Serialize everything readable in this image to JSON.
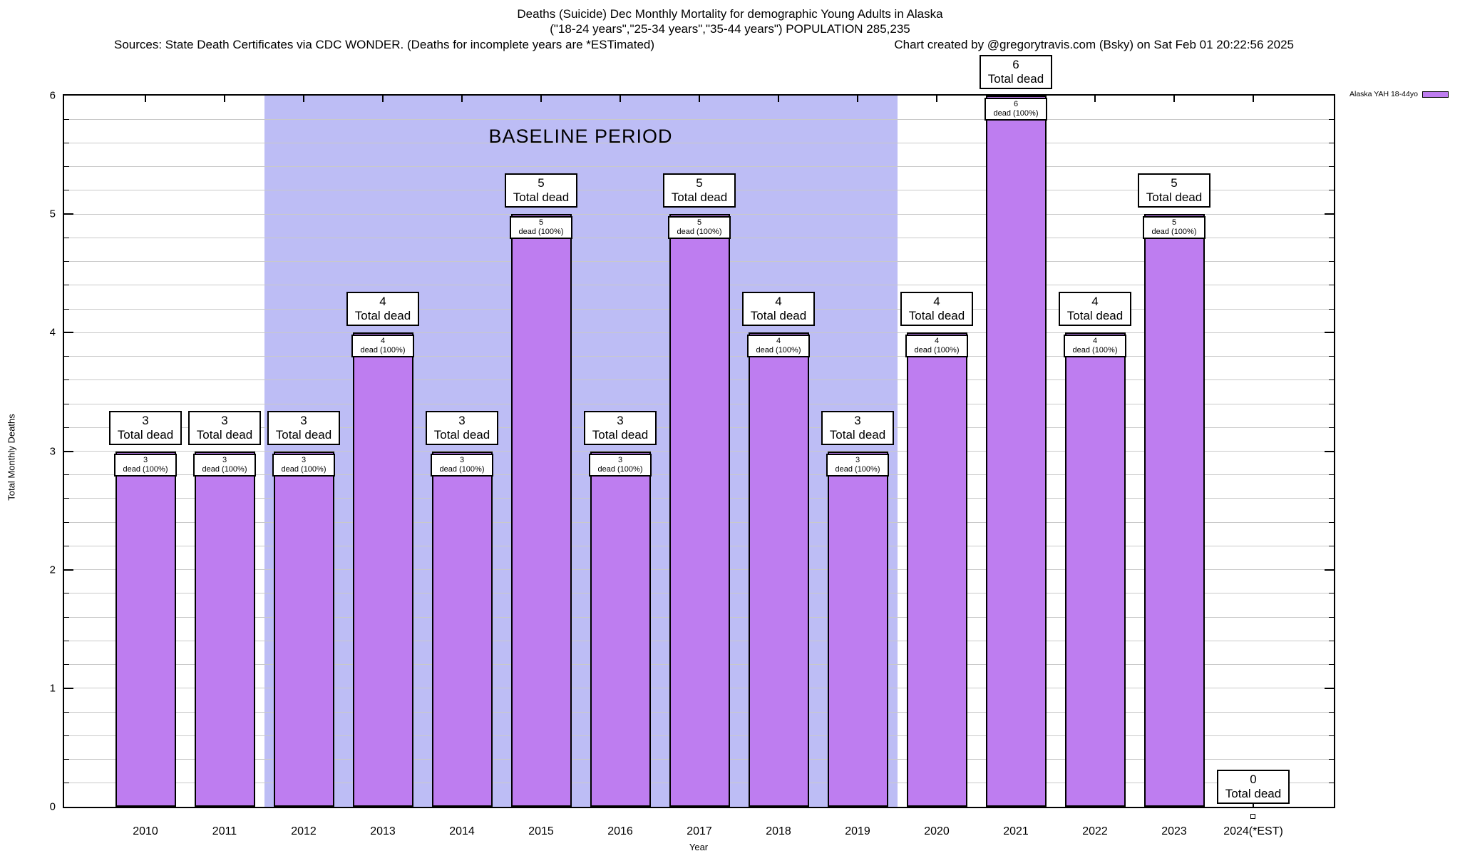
{
  "header": {
    "title_line1": "Deaths (Suicide) Dec Monthly Mortality for demographic Young Adults in Alaska",
    "title_line2": "(\"18-24 years\",\"25-34 years\",\"35-44 years\") POPULATION 285,235",
    "sources": "Sources: State Death Certificates via CDC WONDER. (Deaths for incomplete years are *ESTimated)",
    "credit": "Chart created by @gregorytravis.com (Bsky) on Sat Feb 01 20:22:56 2025"
  },
  "chart_data": {
    "type": "bar",
    "title": "Deaths (Suicide) Dec Monthly Mortality for demographic Young Adults in Alaska",
    "categories": [
      "2010",
      "2011",
      "2012",
      "2013",
      "2014",
      "2015",
      "2016",
      "2017",
      "2018",
      "2019",
      "2020",
      "2021",
      "2022",
      "2023",
      "2024(*EST)"
    ],
    "values": [
      3,
      3,
      3,
      4,
      3,
      5,
      3,
      5,
      4,
      3,
      4,
      6,
      4,
      5,
      0
    ],
    "series_name": "Alaska YAH 18-44yo",
    "xlabel": "Year",
    "ylabel": "Total Monthly Deaths",
    "ylim": [
      0,
      6
    ],
    "y_major_step": 1,
    "y_minor_step": 0.2,
    "grid": true,
    "legend_position": "top-right",
    "annotations": {
      "total_label": "Total dead",
      "inner_label": "dead (100%)",
      "baseline_label": "BASELINE PERIOD",
      "baseline_from": "2012",
      "baseline_to": "2019"
    },
    "colors": {
      "bar_fill": "#be7df0",
      "bar_border": "#000000",
      "baseline_fill": "#bdbdf5",
      "grid": "#c9c9c9",
      "label_box_bg": "#ffffff",
      "label_box_border": "#000000"
    }
  }
}
